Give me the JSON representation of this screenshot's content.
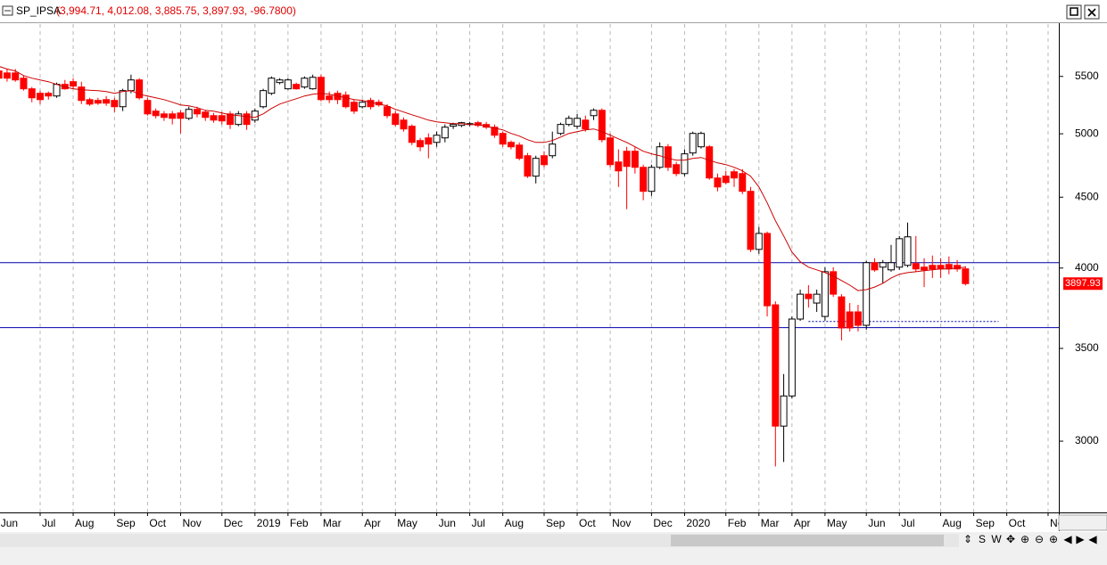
{
  "chart_data": {
    "type": "candlestick",
    "title": "SP_IPSA",
    "ohlc_label": "(3,994.71, 4,012.08, 3,885.75, 3,897.93, -96.7800)",
    "log_scale": true,
    "grid": true,
    "up_color": "#ffffff",
    "down_color": "#ff0000",
    "ylim": [
      2665,
      6000
    ],
    "yticks": [
      3000,
      3500,
      4000,
      4500,
      5000,
      5500
    ],
    "categories": [
      "Jun",
      null,
      null,
      null,
      null,
      "Jul",
      null,
      null,
      null,
      "Aug",
      null,
      null,
      null,
      null,
      "Sep",
      null,
      null,
      null,
      "Oct",
      null,
      null,
      null,
      "Nov",
      null,
      null,
      null,
      null,
      "Dec",
      null,
      null,
      null,
      "2019",
      null,
      null,
      null,
      "Feb",
      null,
      null,
      null,
      "Mar",
      null,
      null,
      null,
      null,
      "Apr",
      null,
      null,
      null,
      "May",
      null,
      null,
      null,
      null,
      "Jun",
      null,
      null,
      null,
      "Jul",
      null,
      null,
      null,
      "Aug",
      null,
      null,
      null,
      null,
      "Sep",
      null,
      null,
      null,
      "Oct",
      null,
      null,
      null,
      "Nov",
      null,
      null,
      null,
      null,
      "Dec",
      null,
      null,
      null,
      "2020",
      null,
      null,
      null,
      null,
      "Feb",
      null,
      null,
      null,
      "Mar",
      null,
      null,
      null,
      "Apr",
      null,
      null,
      null,
      "May",
      null,
      null,
      null,
      null,
      "Jun",
      null,
      null,
      null,
      "Jul",
      null,
      null,
      null,
      null,
      "Aug",
      null,
      null,
      null,
      "Sep",
      null,
      null,
      null,
      "Oct",
      null,
      null,
      null,
      null,
      "No"
    ],
    "open": [
      5550,
      5532,
      5532,
      5484,
      5388,
      5348,
      5348,
      5324,
      5428,
      5452,
      5404,
      5292,
      5285,
      5292,
      5285,
      5230,
      5372,
      5468,
      5285,
      5192,
      5168,
      5168,
      5176,
      5130,
      5207,
      5184,
      5153,
      5153,
      5168,
      5078,
      5168,
      5115,
      5230,
      5348,
      5444,
      5388,
      5428,
      5404,
      5388,
      5492,
      5324,
      5348,
      5332,
      5269,
      5230,
      5285,
      5269,
      5230,
      5168,
      5115,
      5063,
      4944,
      4966,
      4929,
      4966,
      5063,
      5070,
      5078,
      5093,
      5078,
      5055,
      5003,
      4929,
      4907,
      4821,
      4660,
      4821,
      4821,
      5003,
      5078,
      5063,
      5115,
      5153,
      5199,
      4966,
      4771,
      4857,
      4857,
      4729,
      4544,
      4729,
      4893,
      4750,
      4680,
      4843,
      4893,
      4893,
      4646,
      4660,
      4694,
      4680,
      4544,
      4126,
      4237,
      3763,
      3076,
      3234,
      3675,
      3830,
      3774,
      3691,
      3976,
      3813,
      3719,
      3719,
      3637,
      4036,
      4006,
      3988,
      4006,
      4018,
      4030,
      4006,
      4018,
      4018,
      4024,
      4018,
      3994.71,
      null,
      null,
      null,
      null,
      null,
      null,
      null,
      null,
      null,
      null
    ],
    "high": [
      5593,
      5568,
      5568,
      5508,
      5404,
      5372,
      5364,
      5444,
      5468,
      5484,
      5452,
      5308,
      5308,
      5324,
      5308,
      5388,
      5516,
      5484,
      5308,
      5215,
      5192,
      5192,
      5199,
      5230,
      5230,
      5199,
      5176,
      5184,
      5192,
      5192,
      5192,
      5215,
      5388,
      5500,
      5484,
      5484,
      5444,
      5500,
      5516,
      5516,
      5364,
      5372,
      5364,
      5292,
      5292,
      5308,
      5292,
      5253,
      5192,
      5138,
      5078,
      4966,
      5003,
      5018,
      5078,
      5093,
      5100,
      5100,
      5108,
      5100,
      5078,
      5018,
      4944,
      4929,
      4843,
      4821,
      4857,
      5018,
      5093,
      5153,
      5168,
      5153,
      5215,
      5215,
      5003,
      4872,
      4893,
      4893,
      4750,
      4750,
      4929,
      4915,
      4771,
      4872,
      5018,
      5018,
      4907,
      4680,
      4701,
      4715,
      4715,
      4577,
      4282,
      4250,
      3785,
      3354,
      3691,
      3859,
      3888,
      3859,
      4006,
      4006,
      3830,
      3774,
      3763,
      4048,
      4066,
      4054,
      4157,
      4219,
      4314,
      4219,
      4066,
      4084,
      4066,
      4078,
      4054,
      4012.08,
      null,
      null,
      null,
      null,
      null,
      null,
      null,
      null,
      null,
      null
    ],
    "low": [
      5468,
      5452,
      5452,
      5372,
      5269,
      5253,
      5292,
      5308,
      5380,
      5388,
      5253,
      5238,
      5246,
      5238,
      5184,
      5192,
      5348,
      5292,
      5153,
      5130,
      5108,
      5078,
      5003,
      5115,
      5138,
      5108,
      5093,
      5078,
      5040,
      5063,
      5033,
      5093,
      5215,
      5332,
      5428,
      5380,
      5380,
      5388,
      5380,
      5277,
      5261,
      5253,
      5215,
      5168,
      5215,
      5207,
      5230,
      5130,
      5063,
      5018,
      4907,
      4857,
      4800,
      4893,
      4929,
      5040,
      5055,
      5063,
      5055,
      5040,
      4966,
      4893,
      4872,
      4785,
      4646,
      4604,
      4729,
      4800,
      4988,
      5063,
      5040,
      5018,
      5115,
      4929,
      4729,
      4577,
      4411,
      4680,
      4477,
      4510,
      4715,
      4701,
      4660,
      4660,
      4821,
      4879,
      4632,
      4544,
      4597,
      4577,
      4523,
      4108,
      4096,
      3691,
      2877,
      2898,
      3220,
      3664,
      3746,
      3719,
      3664,
      3813,
      3547,
      3600,
      3600,
      3610,
      3976,
      3900,
      3976,
      3988,
      4006,
      3976,
      3876,
      3935,
      3935,
      3959,
      3976,
      3885.75,
      null,
      null,
      null,
      null,
      null,
      null,
      null,
      null,
      null,
      null
    ],
    "close": [
      5484,
      5484,
      5468,
      5388,
      5308,
      5292,
      5324,
      5428,
      5388,
      5412,
      5285,
      5253,
      5261,
      5261,
      5230,
      5372,
      5468,
      5308,
      5168,
      5153,
      5138,
      5130,
      5130,
      5207,
      5168,
      5138,
      5115,
      5108,
      5078,
      5168,
      5078,
      5192,
      5372,
      5484,
      5468,
      5468,
      5388,
      5484,
      5492,
      5292,
      5292,
      5292,
      5230,
      5192,
      5269,
      5230,
      5246,
      5153,
      5078,
      5040,
      4929,
      4893,
      4915,
      4988,
      5055,
      5078,
      5093,
      5085,
      5070,
      5055,
      4988,
      4915,
      4893,
      4800,
      4660,
      4800,
      4750,
      4915,
      5078,
      5130,
      5130,
      5040,
      5199,
      4951,
      4750,
      4701,
      4736,
      4729,
      4544,
      4729,
      4893,
      4729,
      4680,
      4836,
      5003,
      5003,
      4646,
      4577,
      4611,
      4646,
      4544,
      4126,
      4237,
      3757,
      3076,
      3234,
      3675,
      3830,
      3802,
      3830,
      3976,
      3830,
      3621,
      3621,
      3637,
      4036,
      3988,
      4036,
      4036,
      4200,
      4213,
      3994,
      3988,
      3994,
      3994,
      3994,
      3994,
      3897.93,
      null,
      null,
      null,
      null,
      null,
      null,
      null,
      null,
      null,
      null
    ],
    "moving_average": {
      "color": "#cc0000",
      "values": [
        5593,
        5568,
        5550,
        5508,
        5484,
        5468,
        5452,
        5428,
        5404,
        5388,
        5380,
        5375,
        5372,
        5364,
        5348,
        5364,
        5372,
        5340,
        5324,
        5308,
        5292,
        5269,
        5246,
        5238,
        5222,
        5199,
        5192,
        5176,
        5160,
        5153,
        5145,
        5138,
        5168,
        5215,
        5253,
        5277,
        5300,
        5324,
        5340,
        5348,
        5340,
        5324,
        5308,
        5292,
        5285,
        5269,
        5253,
        5238,
        5207,
        5184,
        5160,
        5138,
        5115,
        5100,
        5093,
        5085,
        5085,
        5078,
        5078,
        5063,
        5048,
        5033,
        5003,
        4981,
        4951,
        4929,
        4929,
        4944,
        4973,
        5003,
        5018,
        5033,
        5040,
        5018,
        4988,
        4958,
        4929,
        4893,
        4857,
        4836,
        4821,
        4800,
        4785,
        4785,
        4800,
        4807,
        4785,
        4764,
        4750,
        4729,
        4701,
        4660,
        4577,
        4457,
        4327,
        4219,
        4108,
        4042,
        4006,
        3988,
        3970,
        3947,
        3918,
        3888,
        3853,
        3859,
        3876,
        3900,
        3935,
        3959,
        3970,
        3976,
        3982,
        3988,
        3994,
        3994,
        4000,
        4006,
        null,
        null,
        null,
        null,
        null,
        null,
        null,
        null,
        null,
        null
      ]
    },
    "levels": [
      {
        "value": 4036,
        "color": "#0000aa"
      },
      {
        "value": 3623,
        "color": "#0000aa"
      }
    ],
    "dotted_level": {
      "value": 3660,
      "from": 98,
      "to": 121,
      "color": "#0000aa"
    }
  },
  "toolbar": [
    "⇕",
    "S",
    "W",
    "✥",
    "⊕",
    "⊖",
    "⊕",
    "◀",
    "▶",
    "◀"
  ]
}
